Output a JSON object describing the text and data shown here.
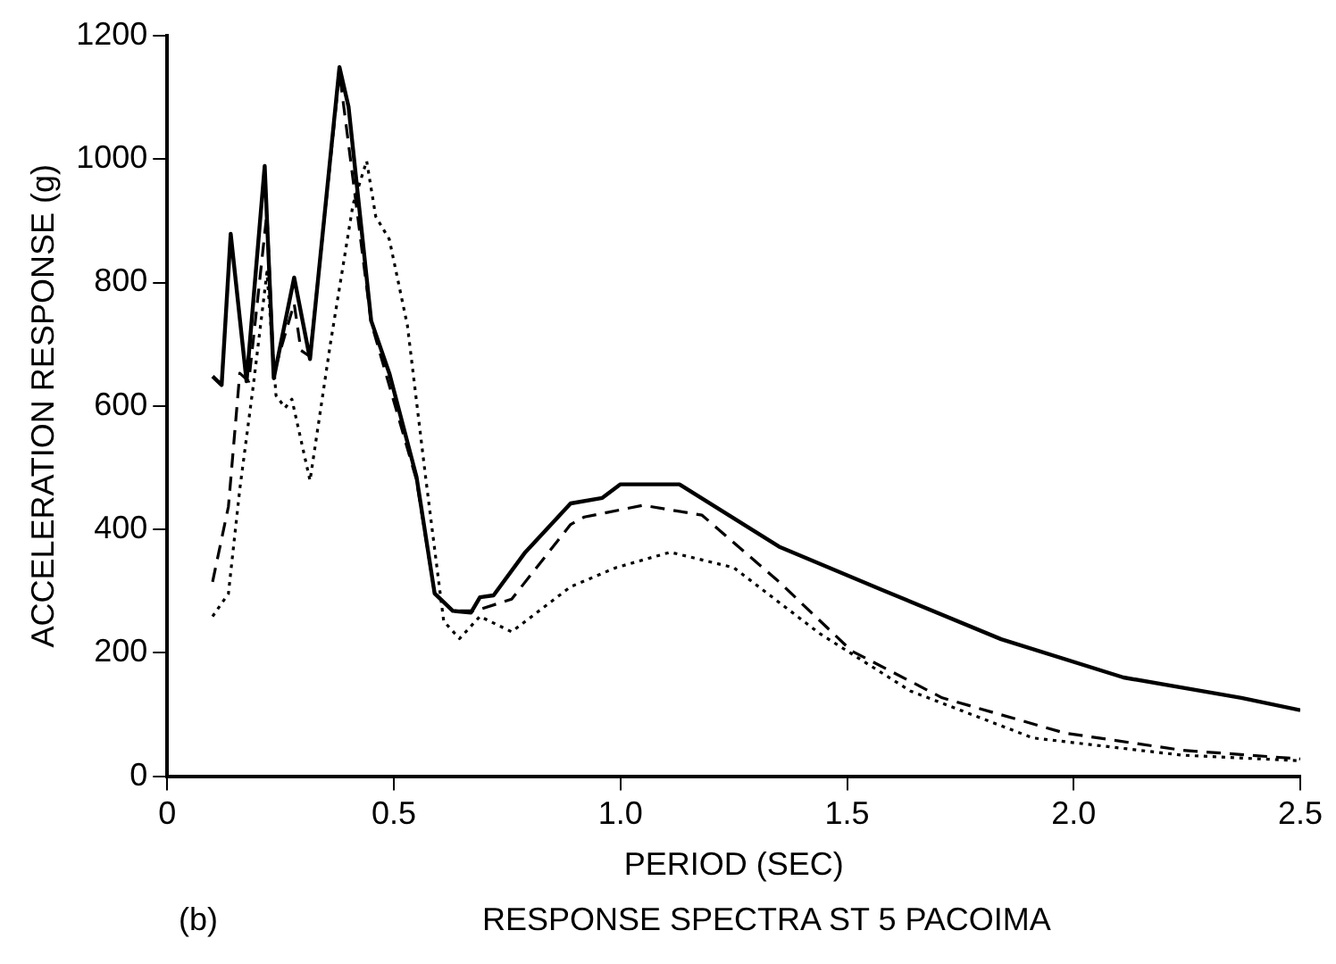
{
  "chart_data": {
    "type": "line",
    "title": "RESPONSE SPECTRA ST 5 PACOIMA",
    "xlabel": "PERIOD (SEC)",
    "ylabel": "ACCELERATION RESPONSE (g)",
    "annotations": [
      "(b)"
    ],
    "xlim": [
      0,
      2.5
    ],
    "xticks": [
      0,
      0.5,
      {
        "value": 1,
        "label": "1.0"
      },
      1.5,
      {
        "value": 2,
        "label": "2.0"
      },
      2.5
    ],
    "ylim": [
      0,
      1200
    ],
    "yticks": [
      0,
      200,
      400,
      600,
      800,
      1000,
      1200
    ],
    "grid": false,
    "legend": false,
    "marker": "none",
    "series": [
      {
        "color": "#000000",
        "line_style": "solid",
        "x": [
          0.1,
          0.12,
          0.14,
          0.175,
          0.215,
          0.235,
          0.28,
          0.315,
          0.38,
          0.4,
          0.45,
          0.49,
          0.55,
          0.59,
          0.63,
          0.67,
          0.69,
          0.72,
          0.79,
          0.89,
          0.96,
          1.0,
          1.13,
          1.35,
          1.58,
          1.84,
          2.11,
          2.37,
          2.5
        ],
        "values": [
          648,
          634,
          879,
          640,
          989,
          645,
          808,
          676,
          1149,
          1085,
          738,
          653,
          485,
          296,
          268,
          265,
          290,
          293,
          363,
          442,
          451,
          473,
          473,
          372,
          301,
          222,
          160,
          127,
          107
        ]
      },
      {
        "color": "#000000",
        "line_style": "dashed",
        "x": [
          0.1,
          0.135,
          0.16,
          0.18,
          0.22,
          0.235,
          0.28,
          0.295,
          0.315,
          0.38,
          0.45,
          0.55,
          0.59,
          0.63,
          0.68,
          0.76,
          0.89,
          0.92,
          1.05,
          1.18,
          1.35,
          1.51,
          1.71,
          1.98,
          2.24,
          2.5
        ],
        "values": [
          315,
          437,
          653,
          640,
          913,
          653,
          766,
          690,
          680,
          1140,
          735,
          480,
          296,
          268,
          268,
          287,
          408,
          420,
          439,
          423,
          315,
          203,
          127,
          70,
          42,
          28
        ]
      },
      {
        "color": "#000000",
        "line_style": "dotted",
        "x": [
          0.1,
          0.135,
          0.16,
          0.19,
          0.22,
          0.24,
          0.26,
          0.275,
          0.315,
          0.36,
          0.41,
          0.44,
          0.46,
          0.49,
          0.53,
          0.57,
          0.61,
          0.645,
          0.69,
          0.76,
          0.89,
          0.99,
          1.11,
          1.25,
          1.44,
          1.64,
          1.91,
          2.24,
          2.5
        ],
        "values": [
          259,
          296,
          465,
          634,
          817,
          617,
          597,
          611,
          479,
          701,
          927,
          997,
          907,
          870,
          730,
          485,
          251,
          223,
          259,
          234,
          307,
          338,
          363,
          338,
          231,
          138,
          62,
          34,
          25
        ]
      }
    ]
  }
}
